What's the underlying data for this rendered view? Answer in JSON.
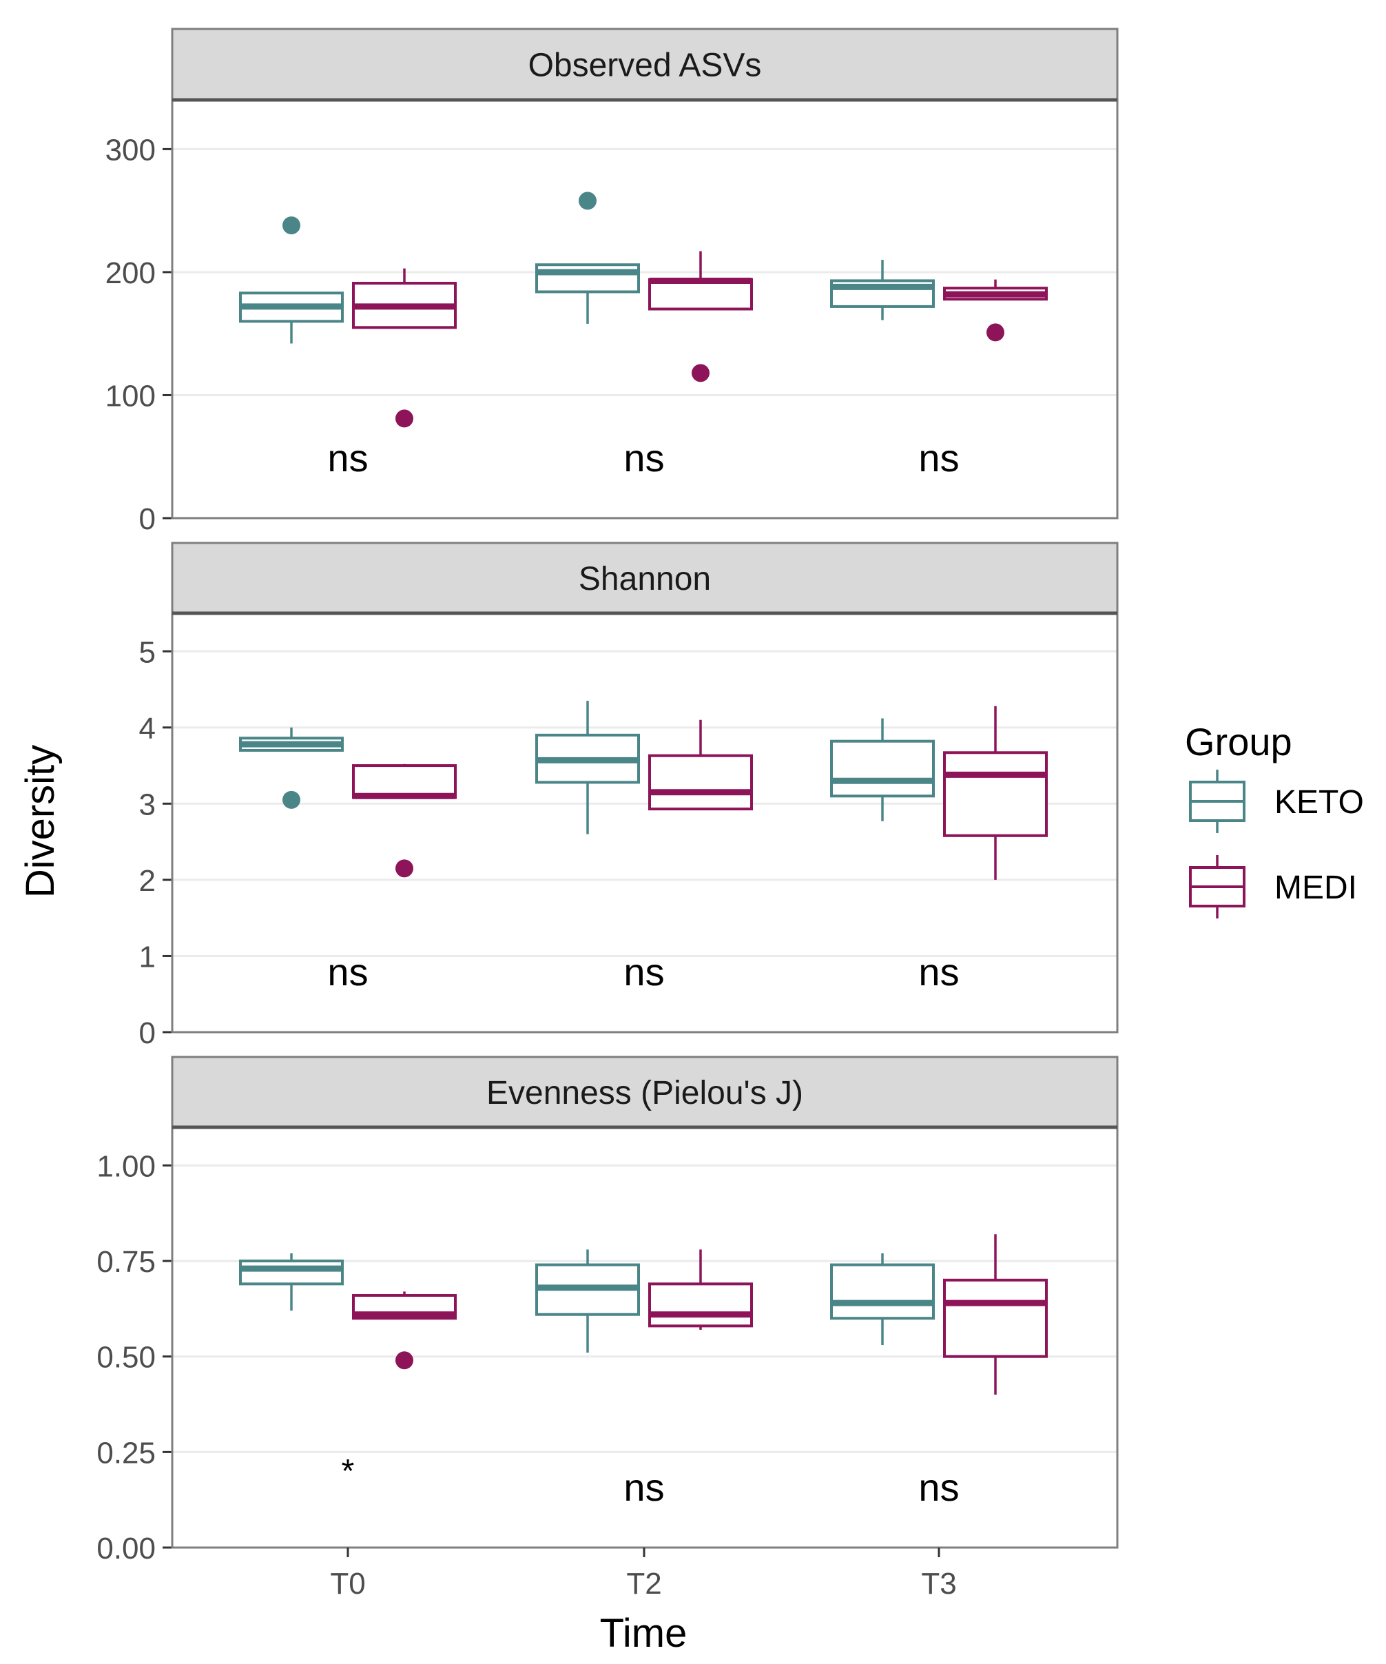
{
  "chart_data": {
    "type": "box",
    "xlabel": "Time",
    "ylabel": "Diversity",
    "categories": [
      "T0",
      "T2",
      "T3"
    ],
    "legend": {
      "title": "Group",
      "placement": "right",
      "entries": [
        {
          "name": "KETO",
          "color": "#4a8588"
        },
        {
          "name": "MEDI",
          "color": "#8e1459"
        }
      ]
    },
    "grid": "horizontal-major",
    "panels": [
      {
        "title": "Observed ASVs",
        "ylim": [
          0,
          340
        ],
        "yticks": [
          0,
          100,
          200,
          300
        ],
        "ytick_labels": [
          "0",
          "100",
          "200",
          "300"
        ],
        "annotations": [
          "ns",
          "ns",
          "ns"
        ],
        "series": [
          {
            "name": "KETO",
            "boxes": [
              {
                "whisker_low": 142,
                "q1": 160,
                "median": 172,
                "q3": 183,
                "whisker_high": 183,
                "outliers": [
                  238
                ]
              },
              {
                "whisker_low": 158,
                "q1": 184,
                "median": 200,
                "q3": 206,
                "whisker_high": 206,
                "outliers": [
                  258
                ]
              },
              {
                "whisker_low": 161,
                "q1": 172,
                "median": 188,
                "q3": 193,
                "whisker_high": 210,
                "outliers": []
              }
            ]
          },
          {
            "name": "MEDI",
            "boxes": [
              {
                "whisker_low": 155,
                "q1": 155,
                "median": 172,
                "q3": 191,
                "whisker_high": 203,
                "outliers": [
                  81
                ]
              },
              {
                "whisker_low": 170,
                "q1": 170,
                "median": 193,
                "q3": 194,
                "whisker_high": 217,
                "outliers": [
                  118
                ]
              },
              {
                "whisker_low": 178,
                "q1": 178,
                "median": 182,
                "q3": 187,
                "whisker_high": 194,
                "outliers": [
                  151
                ]
              }
            ]
          }
        ]
      },
      {
        "title": "Shannon",
        "ylim": [
          0,
          5.5
        ],
        "yticks": [
          0,
          1,
          2,
          3,
          4,
          5
        ],
        "ytick_labels": [
          "0",
          "1",
          "2",
          "3",
          "4",
          "5"
        ],
        "annotations": [
          "ns",
          "ns",
          "ns"
        ],
        "series": [
          {
            "name": "KETO",
            "boxes": [
              {
                "whisker_low": 3.7,
                "q1": 3.7,
                "median": 3.78,
                "q3": 3.86,
                "whisker_high": 4.0,
                "outliers": [
                  3.05
                ]
              },
              {
                "whisker_low": 2.6,
                "q1": 3.28,
                "median": 3.57,
                "q3": 3.9,
                "whisker_high": 4.35,
                "outliers": []
              },
              {
                "whisker_low": 2.77,
                "q1": 3.1,
                "median": 3.3,
                "q3": 3.82,
                "whisker_high": 4.12,
                "outliers": []
              }
            ]
          },
          {
            "name": "MEDI",
            "boxes": [
              {
                "whisker_low": 3.08,
                "q1": 3.08,
                "median": 3.1,
                "q3": 3.5,
                "whisker_high": 3.52,
                "outliers": [
                  2.15
                ]
              },
              {
                "whisker_low": 2.93,
                "q1": 2.93,
                "median": 3.15,
                "q3": 3.63,
                "whisker_high": 4.1,
                "outliers": []
              },
              {
                "whisker_low": 2.0,
                "q1": 2.58,
                "median": 3.38,
                "q3": 3.67,
                "whisker_high": 4.28,
                "outliers": []
              }
            ]
          }
        ]
      },
      {
        "title": "Evenness (Pielou's J)",
        "ylim": [
          0,
          1.1
        ],
        "yticks": [
          0,
          0.25,
          0.5,
          0.75,
          1.0
        ],
        "ytick_labels": [
          "0.00",
          "0.25",
          "0.50",
          "0.75",
          "1.00"
        ],
        "annotations": [
          "*",
          "ns",
          "ns"
        ],
        "series": [
          {
            "name": "KETO",
            "boxes": [
              {
                "whisker_low": 0.62,
                "q1": 0.69,
                "median": 0.73,
                "q3": 0.75,
                "whisker_high": 0.77,
                "outliers": []
              },
              {
                "whisker_low": 0.51,
                "q1": 0.61,
                "median": 0.68,
                "q3": 0.74,
                "whisker_high": 0.78,
                "outliers": []
              },
              {
                "whisker_low": 0.53,
                "q1": 0.6,
                "median": 0.64,
                "q3": 0.74,
                "whisker_high": 0.77,
                "outliers": []
              }
            ]
          },
          {
            "name": "MEDI",
            "boxes": [
              {
                "whisker_low": 0.6,
                "q1": 0.6,
                "median": 0.61,
                "q3": 0.66,
                "whisker_high": 0.67,
                "outliers": [
                  0.49
                ]
              },
              {
                "whisker_low": 0.57,
                "q1": 0.58,
                "median": 0.61,
                "q3": 0.69,
                "whisker_high": 0.78,
                "outliers": []
              },
              {
                "whisker_low": 0.4,
                "q1": 0.5,
                "median": 0.64,
                "q3": 0.7,
                "whisker_high": 0.82,
                "outliers": []
              }
            ]
          }
        ]
      }
    ]
  }
}
